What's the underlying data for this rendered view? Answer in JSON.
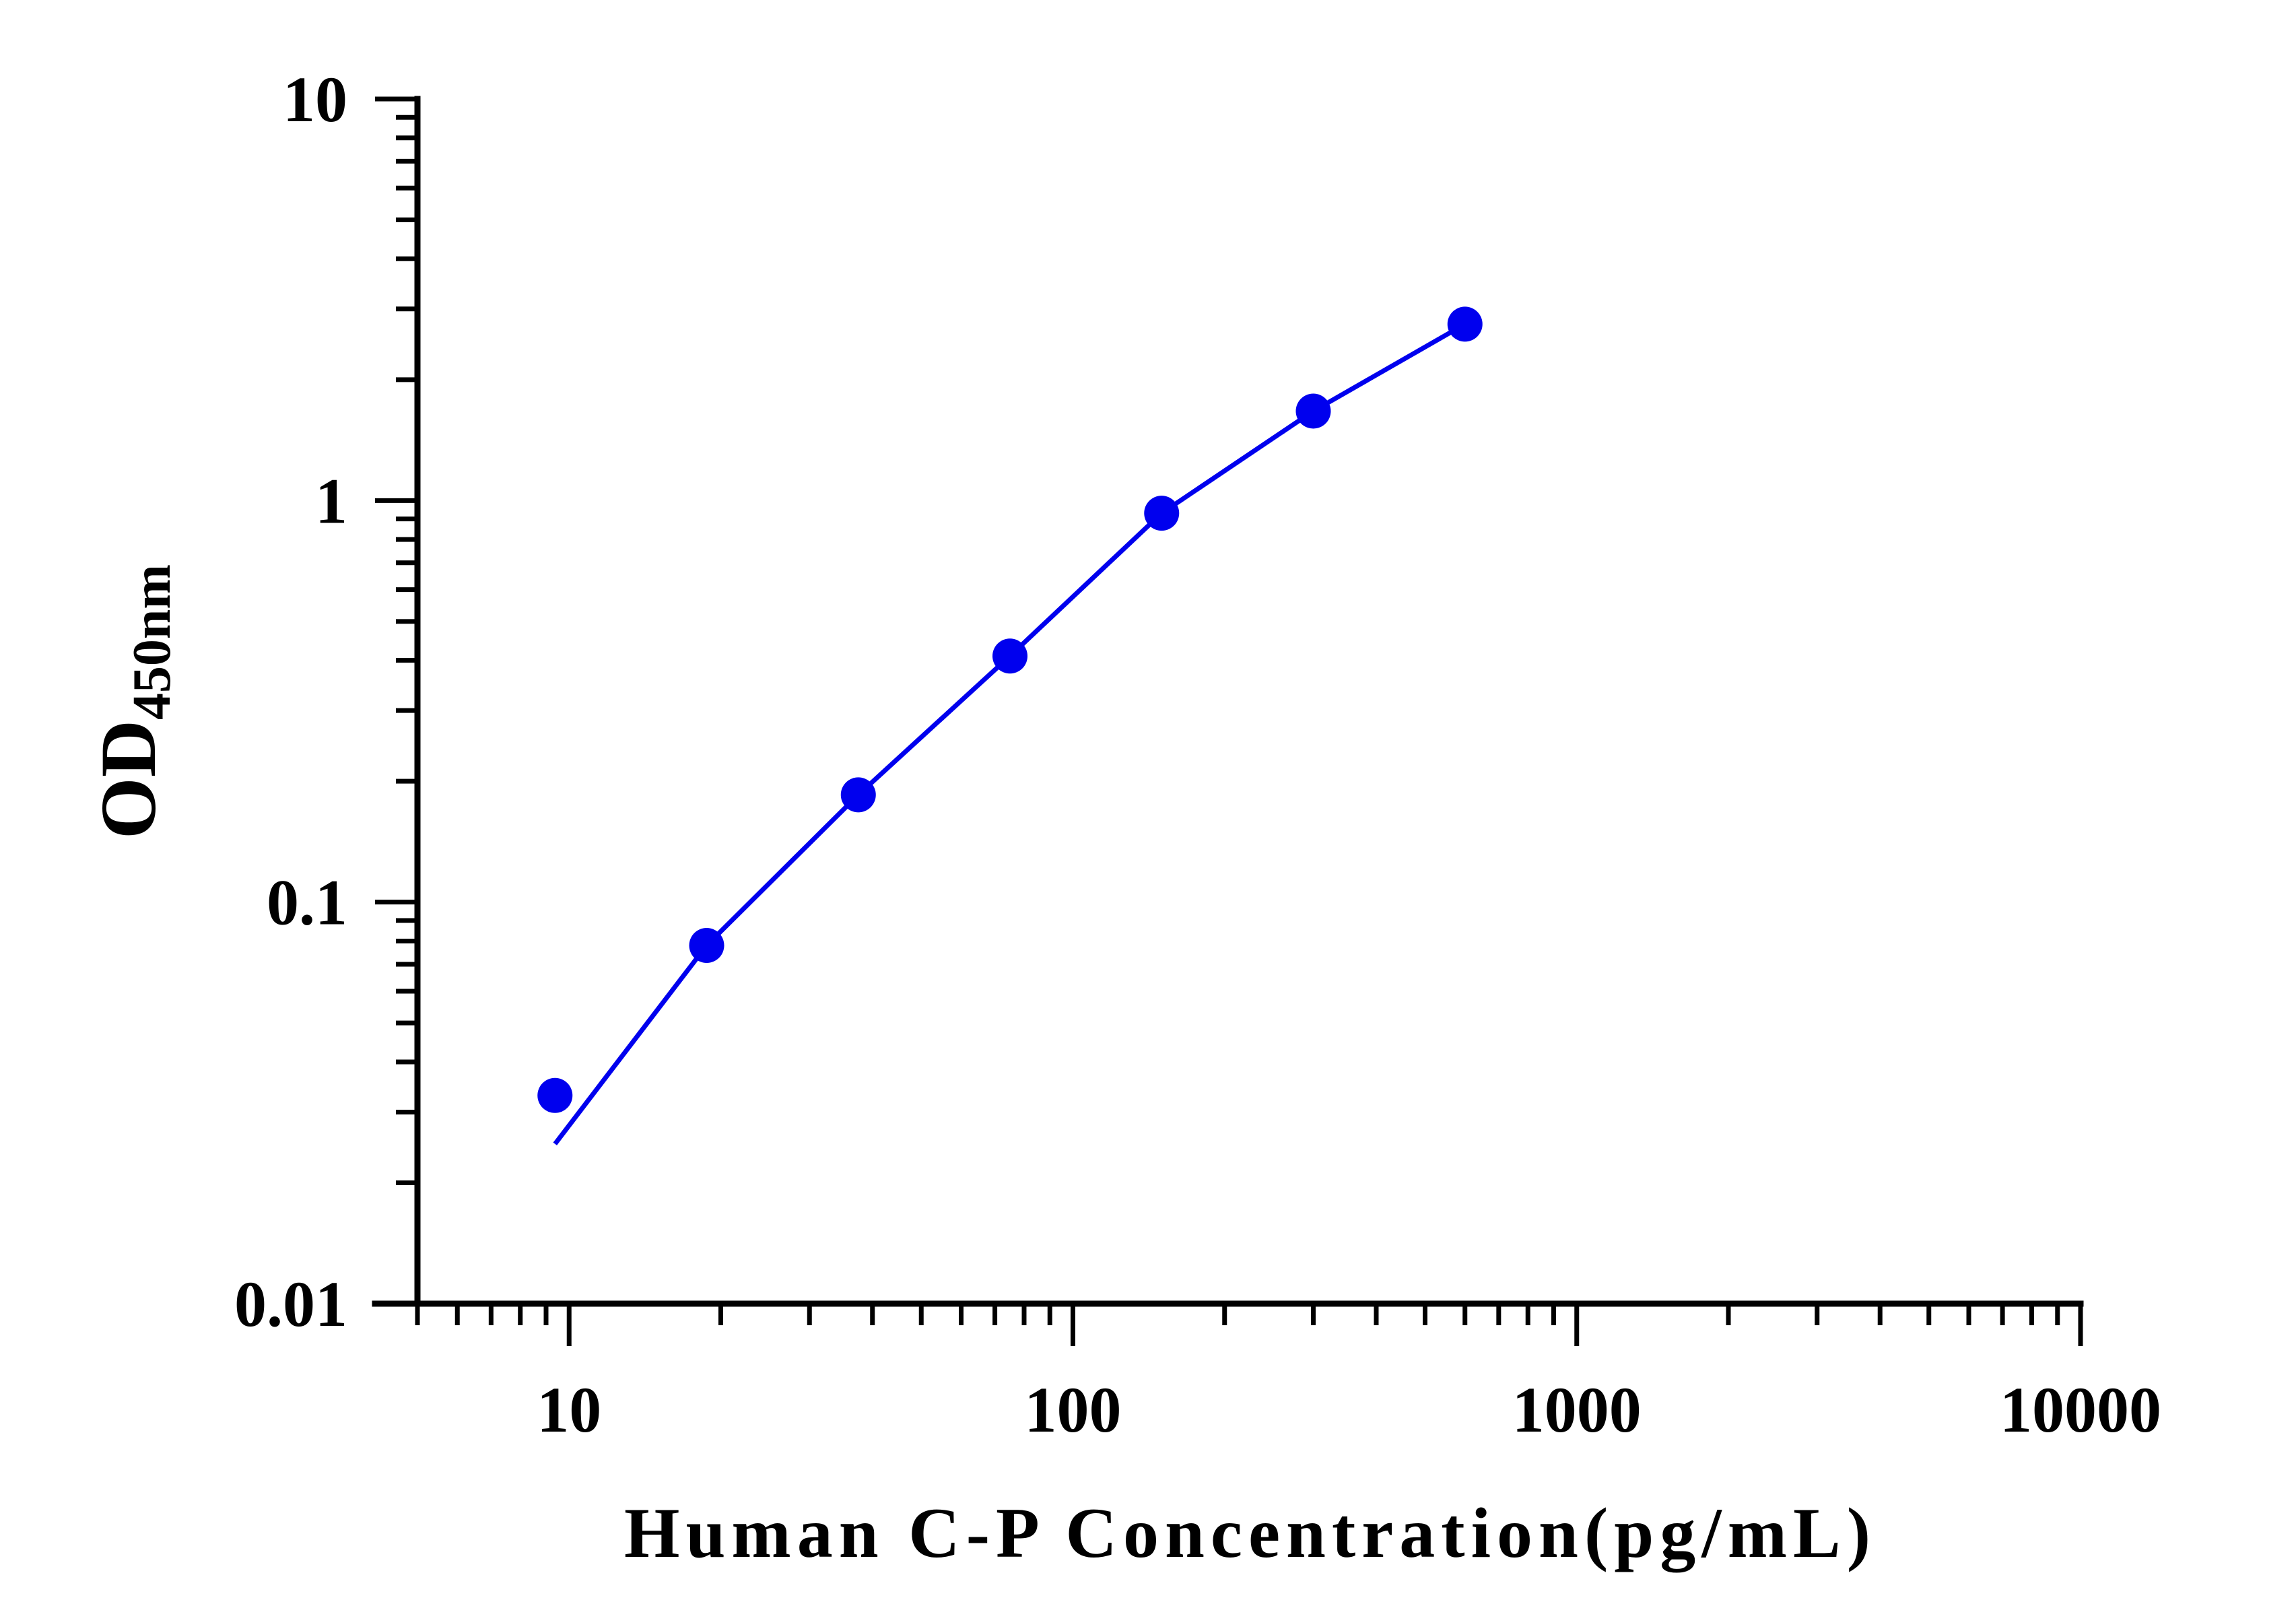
{
  "chart_data": {
    "type": "scatter",
    "title": "",
    "xlabel": "Human C-P Concentration(pg/mL)",
    "ylabel": {
      "main": "OD",
      "subscript": "450nm"
    },
    "x_scale": "log",
    "y_scale": "log",
    "xlim": [
      5,
      10000
    ],
    "ylim": [
      0.01,
      10
    ],
    "x_tick_labels": [
      "10",
      "100",
      "1000",
      "10000"
    ],
    "y_tick_labels": [
      "0.01",
      "0.1",
      "1",
      "10"
    ],
    "grid": false,
    "legend": "none",
    "colors": {
      "series": "#0000ee",
      "axes": "#000000"
    },
    "series": [
      {
        "points": [
          {
            "x": 9.375,
            "y": 0.033
          },
          {
            "x": 18.75,
            "y": 0.078
          },
          {
            "x": 37.5,
            "y": 0.185
          },
          {
            "x": 75,
            "y": 0.41
          },
          {
            "x": 150,
            "y": 0.93
          },
          {
            "x": 300,
            "y": 1.67
          },
          {
            "x": 600,
            "y": 2.75
          }
        ],
        "fit_curve": [
          {
            "x": 9.375,
            "y": 0.025
          },
          {
            "x": 18.75,
            "y": 0.078
          },
          {
            "x": 37.5,
            "y": 0.185
          },
          {
            "x": 75,
            "y": 0.41
          },
          {
            "x": 150,
            "y": 0.93
          },
          {
            "x": 300,
            "y": 1.67
          },
          {
            "x": 600,
            "y": 2.75
          }
        ]
      }
    ]
  }
}
